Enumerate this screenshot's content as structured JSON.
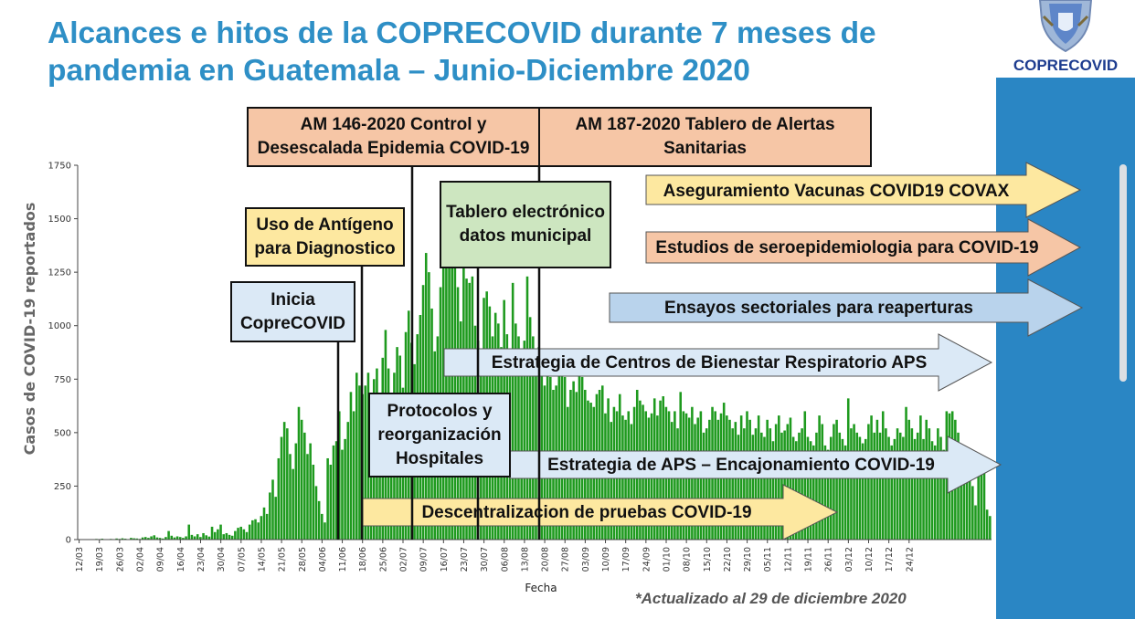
{
  "title": "Alcances e hitos de la COPRECOVID durante 7 meses de pandemia en Guatemala – Junio-Diciembre 2020",
  "logo_text": "COPRECOVID",
  "footnote": "*Actualizado al 29 de diciembre 2020",
  "colors": {
    "bar": "#1e9a1e",
    "title": "#2e8fc6",
    "sidebar": "#2a86c4",
    "salmon": "#f6c6a6",
    "yellow": "#fde8a0",
    "green": "#cde6c0",
    "blue": "#dbe9f6",
    "arrow_blue": "#b9d3ec"
  },
  "chart_data": {
    "type": "bar",
    "xlabel": "Fecha",
    "ylabel": "Casos de COVID-19 reportados",
    "ylim": [
      0,
      1750
    ],
    "yticks": [
      "0",
      "250",
      "500",
      "750",
      "1000",
      "1250",
      "1500",
      "1750"
    ],
    "xticks": [
      "12/03",
      "19/03",
      "26/03",
      "02/04",
      "09/04",
      "16/04",
      "23/04",
      "30/04",
      "07/05",
      "14/05",
      "21/05",
      "28/05",
      "04/06",
      "11/06",
      "18/06",
      "25/06",
      "02/07",
      "09/07",
      "16/07",
      "23/07",
      "30/07",
      "06/08",
      "13/08",
      "20/08",
      "27/08",
      "03/09",
      "10/09",
      "17/09",
      "24/09",
      "01/10",
      "08/10",
      "15/10",
      "22/10",
      "29/10",
      "05/11",
      "12/11",
      "19/11",
      "26/11",
      "03/12",
      "10/12",
      "17/12",
      "24/12"
    ],
    "start_date": "2020-03-12",
    "values": [
      1,
      0,
      0,
      2,
      1,
      0,
      3,
      2,
      4,
      2,
      1,
      3,
      2,
      5,
      3,
      6,
      4,
      2,
      8,
      6,
      5,
      3,
      10,
      12,
      8,
      15,
      20,
      10,
      8,
      5,
      12,
      40,
      18,
      10,
      15,
      12,
      8,
      15,
      70,
      22,
      15,
      25,
      12,
      30,
      20,
      14,
      60,
      35,
      48,
      70,
      25,
      30,
      22,
      18,
      40,
      55,
      60,
      48,
      35,
      70,
      90,
      95,
      80,
      110,
      150,
      120,
      220,
      280,
      200,
      380,
      480,
      550,
      520,
      400,
      330,
      450,
      620,
      560,
      500,
      400,
      450,
      350,
      250,
      180,
      120,
      80,
      380,
      350,
      440,
      460,
      600,
      420,
      470,
      550,
      690,
      600,
      780,
      720,
      680,
      720,
      780,
      660,
      750,
      800,
      560,
      850,
      980,
      800,
      620,
      780,
      900,
      860,
      710,
      970,
      1070,
      920,
      820,
      960,
      1050,
      1190,
      1340,
      1250,
      1080,
      880,
      950,
      1180,
      1330,
      1480,
      1640,
      1510,
      1330,
      1180,
      1020,
      1270,
      1220,
      1200,
      1230,
      1000,
      930,
      880,
      1130,
      1160,
      1090,
      950,
      1060,
      1010,
      900,
      1120,
      960,
      830,
      1200,
      1010,
      950,
      860,
      930,
      1230,
      1040,
      950,
      840,
      900,
      810,
      720,
      800,
      760,
      700,
      720,
      840,
      780,
      760,
      620,
      700,
      740,
      690,
      770,
      760,
      700,
      650,
      640,
      620,
      680,
      700,
      720,
      590,
      660,
      550,
      620,
      600,
      680,
      580,
      560,
      600,
      540,
      620,
      700,
      650,
      630,
      600,
      570,
      590,
      660,
      580,
      650,
      670,
      620,
      600,
      550,
      600,
      520,
      690,
      600,
      590,
      570,
      620,
      540,
      570,
      600,
      500,
      520,
      560,
      620,
      600,
      560,
      590,
      640,
      580,
      560,
      520,
      550,
      490,
      580,
      520,
      600,
      560,
      490,
      520,
      580,
      500,
      480,
      560,
      520,
      460,
      540,
      580,
      500,
      510,
      540,
      570,
      480,
      460,
      500,
      520,
      600,
      480,
      460,
      440,
      500,
      580,
      540,
      440,
      420,
      480,
      540,
      560,
      500,
      470,
      440,
      660,
      520,
      540,
      500,
      480,
      450,
      470,
      540,
      580,
      500,
      560,
      500,
      600,
      520,
      480,
      440,
      470,
      520,
      500,
      480,
      620,
      560,
      520,
      470,
      500,
      580,
      470,
      560,
      520,
      460,
      440,
      520,
      480,
      420,
      600,
      590,
      600,
      560,
      500,
      430,
      410,
      360,
      320,
      250,
      160,
      300,
      340,
      330,
      140,
      110
    ]
  },
  "boxes": {
    "am146": "AM 146-2020 Control y Desescalada Epidemia COVID-19",
    "am187": "AM 187-2020 Tablero de Alertas Sanitarias",
    "antigeno": "Uso de Antígeno para Diagnostico",
    "tablero": "Tablero electrónico datos municipal",
    "inicia": "Inicia CopreCOVID",
    "protocolos": "Protocolos y reorganización Hospitales"
  },
  "arrows": {
    "covax": "Aseguramiento Vacunas COVID19 COVAX",
    "seroepi": "Estudios de seroepidemiologia para COVID-19",
    "ensayos": "Ensayos sectoriales para reaperturas",
    "bienestar": "Estrategia de Centros de Bienestar Respiratorio APS",
    "aps": "Estrategia de APS – Encajonamiento COVID-19",
    "descentral": "Descentralizacion de pruebas COVID-19"
  }
}
